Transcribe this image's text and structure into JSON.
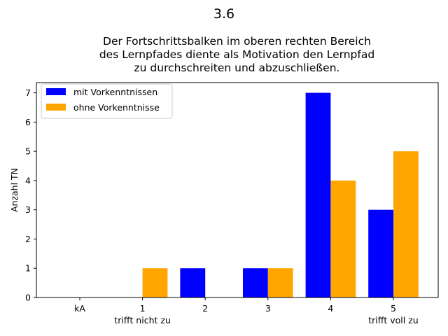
{
  "chart_data": {
    "type": "bar",
    "suptitle": "3.6",
    "title_lines": [
      "Der Fortschrittsbalken im oberen rechten Bereich",
      "des Lernpfades diente als Motivation den Lernpfad",
      "zu durchschreiten und abzuschließen."
    ],
    "ylabel": "Anzahl TN",
    "xlabel": "",
    "categories": [
      "kA",
      "1",
      "2",
      "3",
      "4",
      "5"
    ],
    "category_sublabels": [
      "",
      "trifft nicht zu",
      "",
      "",
      "",
      "trifft voll zu"
    ],
    "ylim": [
      0,
      7.35
    ],
    "yticks": [
      0,
      1,
      2,
      3,
      4,
      5,
      6,
      7
    ],
    "grid": false,
    "legend_position": "upper-left",
    "series": [
      {
        "name": "mit Vorkenntnissen",
        "color": "#0000ff",
        "values": [
          0,
          0,
          1,
          1,
          7,
          3
        ]
      },
      {
        "name": "ohne Vorkenntnisse",
        "color": "#ffa500",
        "values": [
          0,
          1,
          0,
          1,
          4,
          5
        ]
      }
    ]
  }
}
